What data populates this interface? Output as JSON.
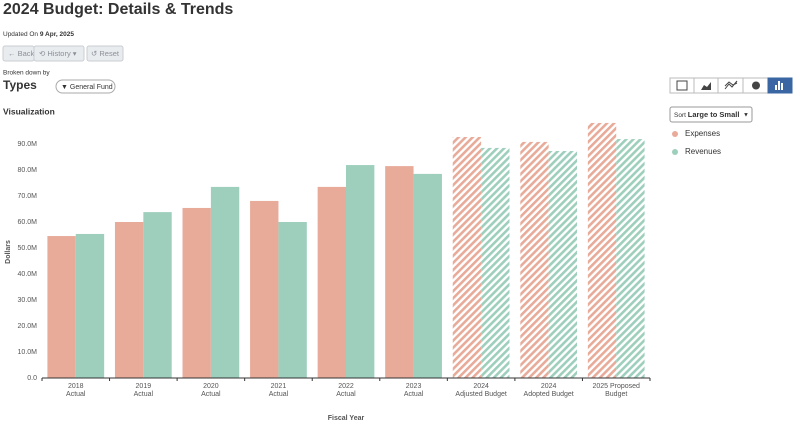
{
  "header": {
    "title": "2024 Budget: Details & Trends",
    "updated_label": "Updated On",
    "updated_date": "9 Apr, 2025"
  },
  "toolbar": {
    "back": "Back",
    "history": "History",
    "reset": "Reset"
  },
  "breakdown": {
    "label": "Broken down by",
    "value": "Types",
    "filter": "General Fund"
  },
  "section": "Visualization",
  "sort": {
    "label": "Sort",
    "value": "Large to Small"
  },
  "chart_data": {
    "type": "bar",
    "xlabel": "Fiscal Year",
    "ylabel": "Dollars",
    "categories": [
      [
        "2018",
        "Actual"
      ],
      [
        "2019",
        "Actual"
      ],
      [
        "2020",
        "Actual"
      ],
      [
        "2021",
        "Actual"
      ],
      [
        "2022",
        "Actual"
      ],
      [
        "2023",
        "Actual"
      ],
      [
        "2024",
        "Adjusted Budget"
      ],
      [
        "2024",
        "Adopted Budget"
      ],
      [
        "2025 Proposed",
        "Budget"
      ]
    ],
    "patterns": [
      "solid",
      "solid",
      "solid",
      "solid",
      "solid",
      "solid",
      "hatched",
      "hatched",
      "hatched"
    ],
    "series": [
      {
        "name": "Expenses",
        "color": "#e8ab9a",
        "values": [
          54600000,
          60000000,
          65400000,
          68100000,
          73500000,
          81500000,
          92700000,
          90800000,
          98100000
        ]
      },
      {
        "name": "Revenues",
        "color": "#9ecfbc",
        "values": [
          55400000,
          63800000,
          73500000,
          60000000,
          81900000,
          78500000,
          88500000,
          87300000,
          91900000
        ]
      }
    ],
    "ylim": [
      0,
      100000000
    ],
    "yticks": [
      {
        "value": 0,
        "label": "0.0"
      },
      {
        "value": 10000000,
        "label": "10.0M"
      },
      {
        "value": 20000000,
        "label": "20.0M"
      },
      {
        "value": 30000000,
        "label": "30.0M"
      },
      {
        "value": 40000000,
        "label": "40.0M"
      },
      {
        "value": 50000000,
        "label": "50.0M"
      },
      {
        "value": 60000000,
        "label": "60.0M"
      },
      {
        "value": 70000000,
        "label": "70.0M"
      },
      {
        "value": 80000000,
        "label": "80.0M"
      },
      {
        "value": 90000000,
        "label": "90.0M"
      }
    ],
    "grid": false
  }
}
